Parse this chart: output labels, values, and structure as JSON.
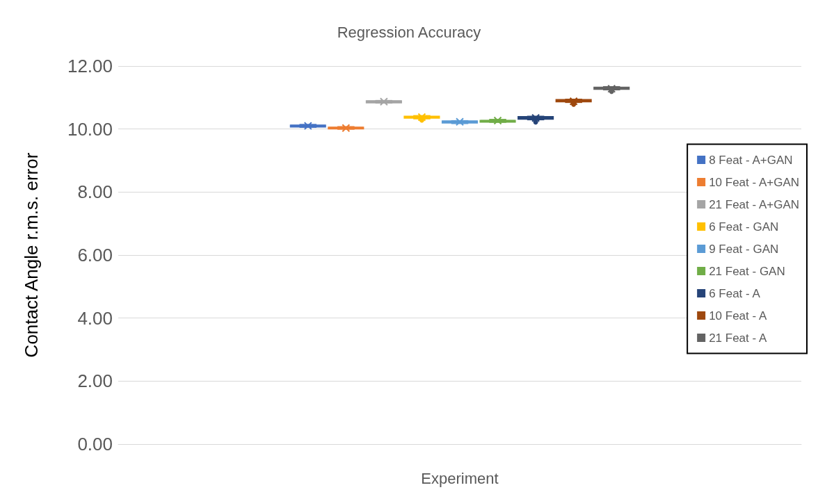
{
  "chart_data": {
    "type": "box",
    "title": "Regression Accuracy",
    "xlabel": "Experiment",
    "ylabel": "Contact Angle r.m.s. error",
    "categories": [
      null
    ],
    "ylim": [
      0,
      12
    ],
    "yticks": [
      {
        "value": 0,
        "label": "0.00"
      },
      {
        "value": 2,
        "label": "2.00"
      },
      {
        "value": 4,
        "label": "4.00"
      },
      {
        "value": 6,
        "label": "6.00"
      },
      {
        "value": 8,
        "label": "8.00"
      },
      {
        "value": 10,
        "label": "10.00"
      },
      {
        "value": 12,
        "label": "12.00"
      }
    ],
    "grid": "y",
    "legend": "right",
    "series": [
      {
        "name": "8 Feat - A+GAN",
        "color": "#4472c4",
        "boxes": [
          {
            "low": 10.06,
            "q1": 10.08,
            "median": 10.1,
            "q3": 10.11,
            "high": 10.14,
            "mean": 10.1
          }
        ]
      },
      {
        "name": "10 Feat - A+GAN",
        "color": "#ed7d31",
        "boxes": [
          {
            "low": 10.0,
            "q1": 10.02,
            "median": 10.03,
            "q3": 10.04,
            "high": 10.07,
            "mean": 10.03
          }
        ]
      },
      {
        "name": "21 Feat - A+GAN",
        "color": "#a5a5a5",
        "boxes": [
          {
            "low": 10.83,
            "q1": 10.85,
            "median": 10.87,
            "q3": 10.88,
            "high": 10.9,
            "mean": 10.87
          }
        ]
      },
      {
        "name": "6 Feat - GAN",
        "color": "#ffc000",
        "boxes": [
          {
            "low": 10.33,
            "q1": 10.36,
            "median": 10.38,
            "q3": 10.39,
            "high": 10.42,
            "mean": 10.38,
            "outliers": [
              10.28
            ]
          }
        ]
      },
      {
        "name": "9 Feat - GAN",
        "color": "#5b9bd5",
        "boxes": [
          {
            "low": 10.18,
            "q1": 10.21,
            "median": 10.23,
            "q3": 10.24,
            "high": 10.26,
            "mean": 10.23
          }
        ]
      },
      {
        "name": "21 Feat - GAN",
        "color": "#70ad47",
        "boxes": [
          {
            "low": 10.22,
            "q1": 10.24,
            "median": 10.25,
            "q3": 10.26,
            "high": 10.3,
            "mean": 10.27
          }
        ]
      },
      {
        "name": "6 Feat - A",
        "color": "#264478",
        "boxes": [
          {
            "low": 10.3,
            "q1": 10.33,
            "median": 10.36,
            "q3": 10.38,
            "high": 10.4,
            "mean": 10.35,
            "outliers": [
              10.22
            ]
          }
        ]
      },
      {
        "name": "10 Feat - A",
        "color": "#9e480e",
        "boxes": [
          {
            "low": 10.85,
            "q1": 10.88,
            "median": 10.91,
            "q3": 10.92,
            "high": 10.94,
            "mean": 10.88,
            "outliers": [
              10.78
            ]
          }
        ]
      },
      {
        "name": "21 Feat - A",
        "color": "#636363",
        "boxes": [
          {
            "low": 11.25,
            "q1": 11.28,
            "median": 11.3,
            "q3": 11.31,
            "high": 11.34,
            "mean": 11.28,
            "outliers": [
              11.19
            ]
          }
        ]
      }
    ]
  }
}
